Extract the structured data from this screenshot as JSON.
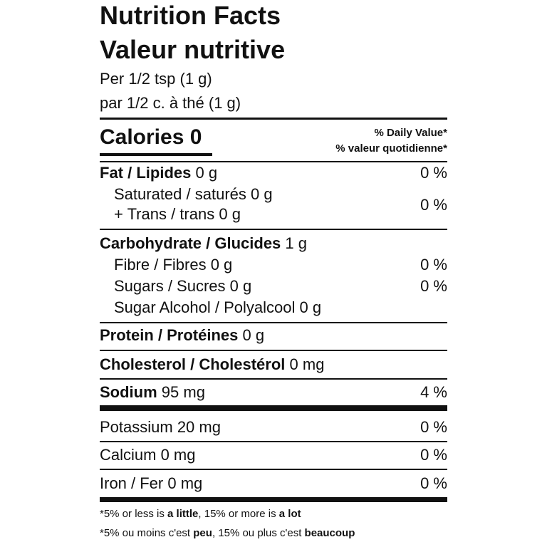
{
  "header": {
    "title_en": "Nutrition Facts",
    "title_fr": "Valeur nutritive",
    "serving_en": "Per 1/2 tsp (1 g)",
    "serving_fr": "par 1/2 c. à thé (1 g)"
  },
  "calories": "Calories 0",
  "daily_value": {
    "en": "% Daily Value*",
    "fr": "% valeur quotidienne*"
  },
  "fat": {
    "name": "Fat / Lipides",
    "amount": "0 g",
    "dv": "0 %"
  },
  "saturated": "Saturated / saturés 0 g",
  "trans": "+ Trans / trans 0 g",
  "sat_trans_dv": "0 %",
  "carbohydrate": {
    "name": "Carbohydrate / Glucides",
    "amount": "1 g"
  },
  "fibre": {
    "name": "Fibre / Fibres 0 g",
    "dv": "0 %"
  },
  "sugars": {
    "name": "Sugars / Sucres 0 g",
    "dv": "0 %"
  },
  "sugar_alcohol": "Sugar Alcohol / Polyalcool 0 g",
  "protein": {
    "name": "Protein / Protéines",
    "amount": "0 g"
  },
  "cholesterol": {
    "name": "Cholesterol / Cholestérol",
    "amount": "0 mg"
  },
  "sodium": {
    "name": "Sodium",
    "amount": "95 mg",
    "dv": "4 %"
  },
  "potassium": {
    "name": "Potassium 20 mg",
    "dv": "0 %"
  },
  "calcium": {
    "name": "Calcium 0 mg",
    "dv": "0 %"
  },
  "iron": {
    "name": "Iron / Fer 0 mg",
    "dv": "0 %"
  },
  "footnote": {
    "en": [
      "*5% or less is ",
      "a little",
      ", 15% or more is ",
      "a lot"
    ],
    "fr": [
      "*5% ou moins c'est ",
      "peu",
      ", 15% ou plus c'est ",
      "beaucoup"
    ]
  }
}
